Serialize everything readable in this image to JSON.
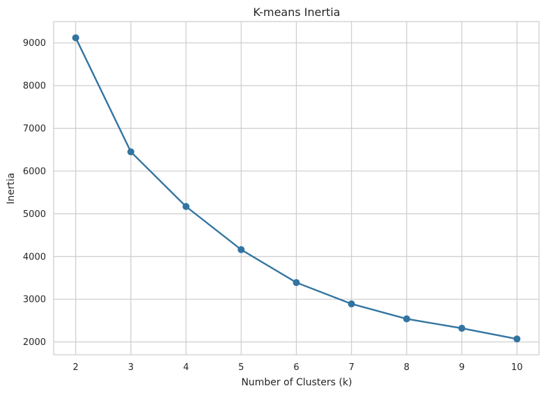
{
  "chart_data": {
    "type": "line",
    "title": "K-means Inertia",
    "xlabel": "Number of Clusters (k)",
    "ylabel": "Inertia",
    "x": [
      2,
      3,
      4,
      5,
      6,
      7,
      8,
      9,
      10
    ],
    "series": [
      {
        "values": [
          9120,
          6450,
          5170,
          4160,
          3390,
          2890,
          2540,
          2320,
          2070
        ]
      }
    ],
    "xlim": [
      1.6,
      10.4
    ],
    "ylim": [
      1700,
      9500
    ],
    "xticks": [
      2,
      3,
      4,
      5,
      6,
      7,
      8,
      9,
      10
    ],
    "yticks": [
      2000,
      3000,
      4000,
      5000,
      6000,
      7000,
      8000,
      9000
    ],
    "grid": true,
    "colors": {
      "line": "#3274a1",
      "grid": "#cccccc",
      "text": "#262626",
      "background": "#ffffff"
    }
  }
}
